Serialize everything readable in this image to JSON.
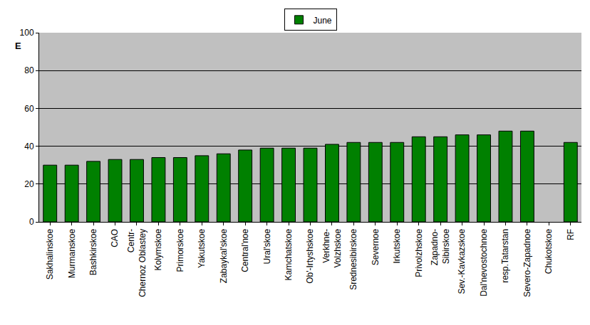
{
  "chart_data": {
    "type": "bar",
    "y_label": "E",
    "categories": [
      "Sakhalinskoe",
      "Murmanskoe",
      "Bashkirskoe",
      "CAO",
      "Centr-\nChernoz Oblastey",
      "Kolymskoe",
      "Primorskoe",
      "Yakutskoe",
      "Zabaykal'skoe",
      "Central'noe",
      "Ural'skoe",
      "Kamchatskoe",
      "Ob'-Irtyshskoe",
      "Verkhne-\nVolzhskoe",
      "Srednesibirskoe",
      "Severnoe",
      "Irkutskoe",
      "Privolzhskoe",
      "Zapadno-\nSibirskoe",
      "Sev.-Kavkazskoe",
      "Dal'nevostochnoe",
      "resp.Tatarstan",
      "Severo-Zapadnoe",
      "Chukotskoe",
      "RF"
    ],
    "series": [
      {
        "name": "June",
        "color": "#008000",
        "values": [
          30,
          30,
          32,
          33,
          33,
          34,
          34,
          35,
          36,
          38,
          39,
          39,
          39,
          41,
          42,
          42,
          42,
          45,
          45,
          46,
          46,
          48,
          48,
          null,
          42
        ]
      }
    ],
    "ylim": [
      0,
      100
    ],
    "yticks": [
      0,
      20,
      40,
      60,
      80,
      100
    ],
    "grid": true,
    "legend": "top"
  }
}
